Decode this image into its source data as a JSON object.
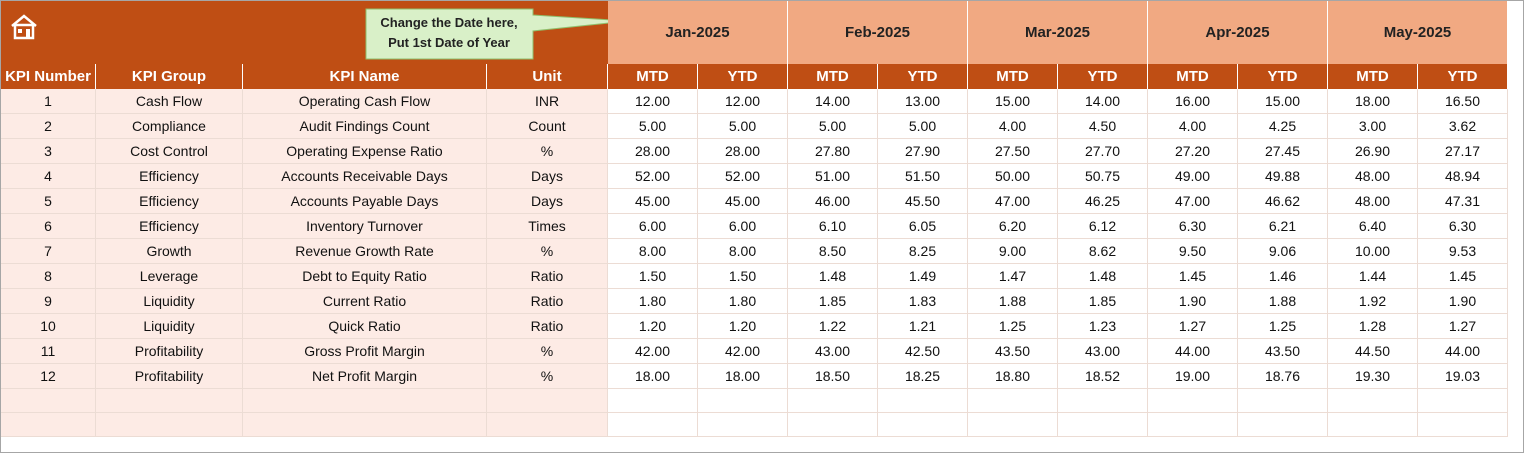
{
  "header": {
    "callout": [
      "Change the Date here,",
      "Put 1st Date of Year"
    ],
    "months": [
      "Jan-2025",
      "Feb-2025",
      "Mar-2025",
      "Apr-2025",
      "May-2025"
    ]
  },
  "table": {
    "columns": [
      "KPI Number",
      "KPI Group",
      "KPI Name",
      "Unit",
      "MTD",
      "YTD",
      "MTD",
      "YTD",
      "MTD",
      "YTD",
      "MTD",
      "YTD",
      "MTD",
      "YTD"
    ],
    "rows": [
      [
        "1",
        "Cash Flow",
        "Operating Cash Flow",
        "INR",
        "12.00",
        "12.00",
        "14.00",
        "13.00",
        "15.00",
        "14.00",
        "16.00",
        "15.00",
        "18.00",
        "16.50"
      ],
      [
        "2",
        "Compliance",
        "Audit Findings Count",
        "Count",
        "5.00",
        "5.00",
        "5.00",
        "5.00",
        "4.00",
        "4.50",
        "4.00",
        "4.25",
        "3.00",
        "3.62"
      ],
      [
        "3",
        "Cost Control",
        "Operating Expense Ratio",
        "%",
        "28.00",
        "28.00",
        "27.80",
        "27.90",
        "27.50",
        "27.70",
        "27.20",
        "27.45",
        "26.90",
        "27.17"
      ],
      [
        "4",
        "Efficiency",
        "Accounts Receivable Days",
        "Days",
        "52.00",
        "52.00",
        "51.00",
        "51.50",
        "50.00",
        "50.75",
        "49.00",
        "49.88",
        "48.00",
        "48.94"
      ],
      [
        "5",
        "Efficiency",
        "Accounts Payable Days",
        "Days",
        "45.00",
        "45.00",
        "46.00",
        "45.50",
        "47.00",
        "46.25",
        "47.00",
        "46.62",
        "48.00",
        "47.31"
      ],
      [
        "6",
        "Efficiency",
        "Inventory Turnover",
        "Times",
        "6.00",
        "6.00",
        "6.10",
        "6.05",
        "6.20",
        "6.12",
        "6.30",
        "6.21",
        "6.40",
        "6.30"
      ],
      [
        "7",
        "Growth",
        "Revenue Growth Rate",
        "%",
        "8.00",
        "8.00",
        "8.50",
        "8.25",
        "9.00",
        "8.62",
        "9.50",
        "9.06",
        "10.00",
        "9.53"
      ],
      [
        "8",
        "Leverage",
        "Debt to Equity Ratio",
        "Ratio",
        "1.50",
        "1.50",
        "1.48",
        "1.49",
        "1.47",
        "1.48",
        "1.45",
        "1.46",
        "1.44",
        "1.45"
      ],
      [
        "9",
        "Liquidity",
        "Current Ratio",
        "Ratio",
        "1.80",
        "1.80",
        "1.85",
        "1.83",
        "1.88",
        "1.85",
        "1.90",
        "1.88",
        "1.92",
        "1.90"
      ],
      [
        "10",
        "Liquidity",
        "Quick Ratio",
        "Ratio",
        "1.20",
        "1.20",
        "1.22",
        "1.21",
        "1.25",
        "1.23",
        "1.27",
        "1.25",
        "1.28",
        "1.27"
      ],
      [
        "11",
        "Profitability",
        "Gross Profit Margin",
        "%",
        "42.00",
        "42.00",
        "43.00",
        "42.50",
        "43.50",
        "43.00",
        "44.00",
        "43.50",
        "44.50",
        "44.00"
      ],
      [
        "12",
        "Profitability",
        "Net Profit Margin",
        "%",
        "18.00",
        "18.00",
        "18.50",
        "18.25",
        "18.80",
        "18.52",
        "19.00",
        "18.76",
        "19.30",
        "19.03"
      ]
    ]
  }
}
